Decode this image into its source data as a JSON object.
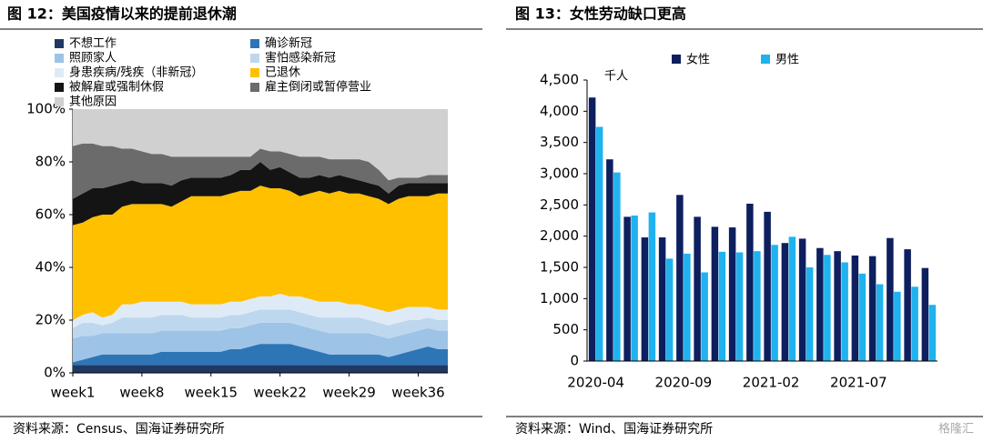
{
  "chart_data": [
    {
      "type": "area",
      "title": "图 12：美国疫情以来的提前退休潮",
      "source": "资料来源：Census、国海证券研究所",
      "stacked": true,
      "categories": [
        "week1",
        null,
        null,
        null,
        null,
        null,
        null,
        "week8",
        null,
        null,
        null,
        null,
        null,
        null,
        "week15",
        null,
        null,
        null,
        null,
        null,
        null,
        "week22",
        null,
        null,
        null,
        null,
        null,
        null,
        "week29",
        null,
        null,
        null,
        null,
        null,
        null,
        "week36",
        null,
        null,
        null
      ],
      "ylim": [
        0,
        100
      ],
      "yticks": [
        {
          "value": 0,
          "label": "0%"
        },
        {
          "value": 20,
          "label": "20%"
        },
        {
          "value": 40,
          "label": "40%"
        },
        {
          "value": 60,
          "label": "60%"
        },
        {
          "value": 80,
          "label": "80%"
        },
        {
          "value": 100,
          "label": "100%"
        }
      ],
      "series": [
        {
          "name": "不想工作",
          "color": "#1f3864",
          "values": [
            3,
            3,
            3,
            3,
            3,
            3,
            3,
            3,
            3,
            3,
            3,
            3,
            3,
            3,
            3,
            3,
            3,
            3,
            3,
            3,
            3,
            3,
            3,
            3,
            3,
            3,
            3,
            3,
            3,
            3,
            3,
            3,
            3,
            3,
            3,
            3,
            3,
            3,
            3
          ]
        },
        {
          "name": "确诊新冠",
          "color": "#2e75b6",
          "values": [
            1,
            2,
            3,
            4,
            4,
            4,
            4,
            4,
            4,
            5,
            5,
            5,
            5,
            5,
            5,
            5,
            6,
            6,
            7,
            8,
            8,
            8,
            8,
            7,
            6,
            5,
            4,
            4,
            4,
            4,
            4,
            4,
            3,
            4,
            5,
            6,
            7,
            6,
            6
          ]
        },
        {
          "name": "照顾家人",
          "color": "#9dc3e6",
          "values": [
            9,
            9,
            8,
            8,
            8,
            8,
            8,
            8,
            8,
            8,
            8,
            8,
            8,
            8,
            8,
            8,
            8,
            8,
            8,
            8,
            8,
            8,
            8,
            8,
            8,
            8,
            8,
            8,
            8,
            8,
            8,
            7,
            7,
            7,
            7,
            7,
            7,
            7,
            7
          ]
        },
        {
          "name": "害怕感染新冠",
          "color": "#bdd7ee",
          "values": [
            4,
            5,
            5,
            3,
            4,
            6,
            6,
            6,
            6,
            6,
            6,
            6,
            5,
            5,
            5,
            5,
            5,
            5,
            5,
            5,
            5,
            5,
            5,
            5,
            5,
            5,
            6,
            6,
            6,
            6,
            5,
            5,
            5,
            5,
            5,
            4,
            4,
            4,
            4
          ]
        },
        {
          "name": "身患疾病/残疾（非新冠）",
          "color": "#deebf7",
          "values": [
            3,
            3,
            4,
            3,
            3,
            5,
            5,
            6,
            6,
            5,
            5,
            5,
            5,
            5,
            5,
            5,
            5,
            5,
            5,
            5,
            5,
            6,
            5,
            6,
            6,
            6,
            6,
            6,
            5,
            5,
            5,
            5,
            5,
            5,
            5,
            5,
            4,
            4,
            4
          ]
        },
        {
          "name": "已退休",
          "color": "#ffc000",
          "values": [
            36,
            35,
            36,
            39,
            38,
            37,
            38,
            37,
            37,
            37,
            36,
            38,
            41,
            41,
            41,
            41,
            41,
            42,
            41,
            42,
            41,
            40,
            40,
            38,
            40,
            42,
            41,
            42,
            42,
            42,
            42,
            42,
            41,
            42,
            42,
            42,
            42,
            44,
            44
          ]
        },
        {
          "name": "被解雇或强制休假",
          "color": "#141414",
          "values": [
            10,
            11,
            11,
            10,
            11,
            9,
            9,
            8,
            8,
            8,
            8,
            8,
            7,
            7,
            7,
            7,
            7,
            8,
            8,
            9,
            7,
            8,
            7,
            7,
            6,
            6,
            6,
            6,
            6,
            5,
            5,
            5,
            4,
            5,
            5,
            5,
            5,
            4,
            4
          ]
        },
        {
          "name": "雇主倒闭或暂停营业",
          "color": "#6b6b6b",
          "values": [
            20,
            19,
            17,
            16,
            15,
            13,
            12,
            12,
            11,
            11,
            11,
            9,
            8,
            8,
            8,
            8,
            7,
            5,
            5,
            5,
            7,
            6,
            7,
            8,
            8,
            7,
            7,
            6,
            7,
            8,
            8,
            6,
            5,
            3,
            2,
            2,
            3,
            3,
            3
          ]
        },
        {
          "name": "其他原因",
          "color": "#d0d0d0",
          "values": [
            14,
            13,
            13,
            14,
            14,
            15,
            15,
            16,
            17,
            17,
            18,
            18,
            18,
            18,
            18,
            18,
            18,
            18,
            18,
            15,
            16,
            16,
            17,
            18,
            18,
            18,
            19,
            19,
            19,
            19,
            20,
            23,
            27,
            26,
            26,
            26,
            25,
            25,
            25
          ]
        }
      ]
    },
    {
      "type": "bar",
      "title": "图 13：女性劳动缺口更高",
      "source": "资料来源：Wind、国海证券研究所",
      "y_unit": "千人",
      "categories": [
        "2020-04",
        null,
        null,
        null,
        null,
        "2020-09",
        null,
        null,
        null,
        null,
        "2021-02",
        null,
        null,
        null,
        null,
        "2021-07",
        null,
        null,
        null,
        null
      ],
      "ylim": [
        0,
        4500
      ],
      "yticks": [
        0,
        500,
        {
          "value": 1000,
          "label": "1,000"
        },
        {
          "value": 1500,
          "label": "1,500"
        },
        {
          "value": 2000,
          "label": "2,000"
        },
        {
          "value": 2500,
          "label": "2,500"
        },
        {
          "value": 3000,
          "label": "3,000"
        },
        {
          "value": 3500,
          "label": "3,500"
        },
        {
          "value": 4000,
          "label": "4,000"
        },
        {
          "value": 4500,
          "label": "4,500"
        }
      ],
      "series": [
        {
          "name": "女性",
          "color": "#0d1f5e",
          "values": [
            4220,
            3230,
            2310,
            1980,
            1980,
            2660,
            2310,
            2150,
            2140,
            2520,
            2390,
            1890,
            1960,
            1810,
            1760,
            1690,
            1680,
            1970,
            1790,
            1490
          ]
        },
        {
          "name": "男性",
          "color": "#1fb2ee",
          "values": [
            3750,
            3020,
            2330,
            2380,
            1640,
            1720,
            1420,
            1750,
            1740,
            1760,
            1860,
            1990,
            1500,
            1700,
            1580,
            1400,
            1230,
            1110,
            1190,
            900
          ]
        }
      ]
    }
  ],
  "watermark": "格隆汇"
}
